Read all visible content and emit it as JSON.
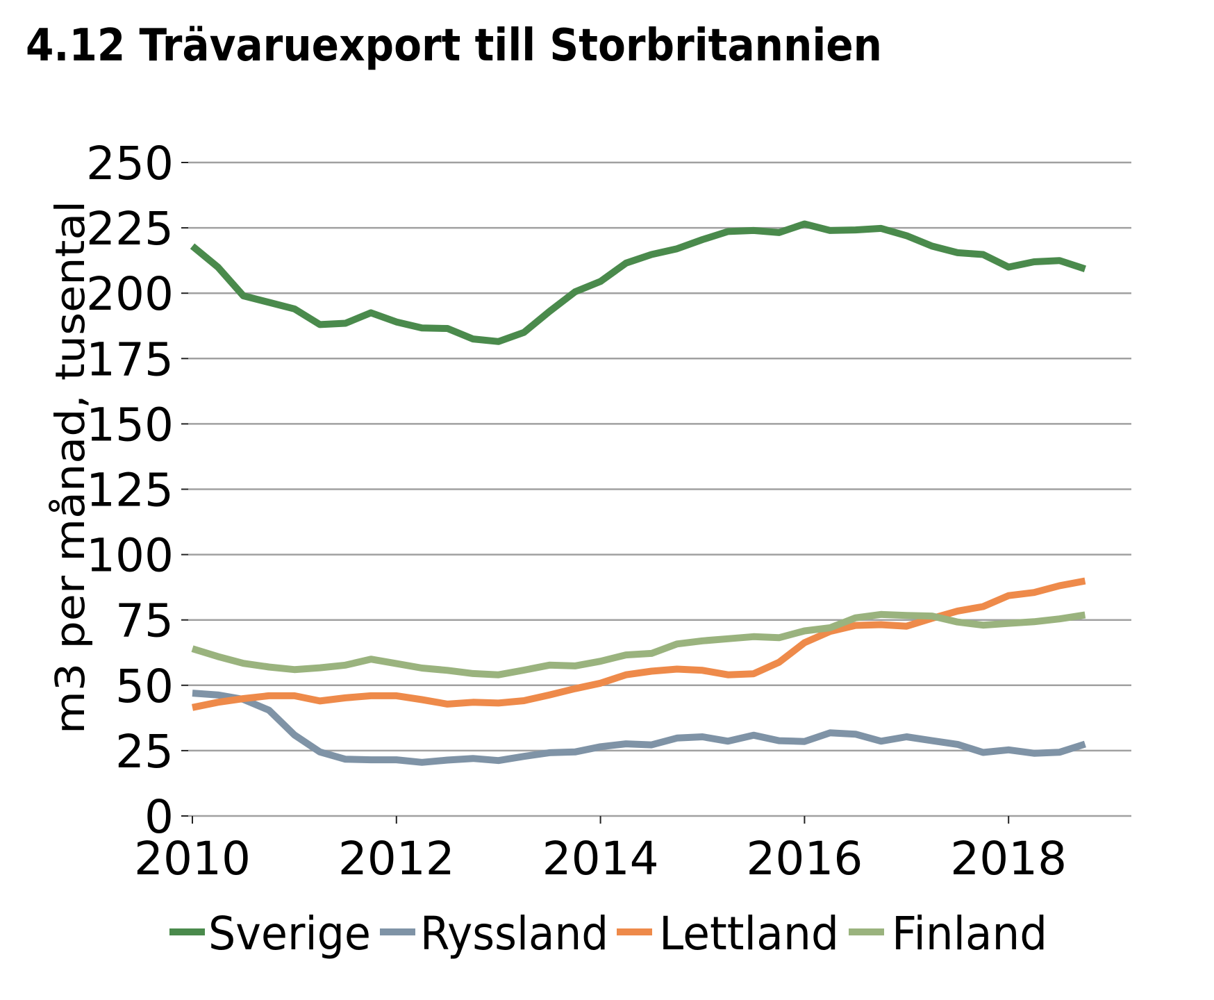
{
  "chart_data": {
    "type": "line",
    "title": "4.12 Trävaruexport till Storbritannien",
    "xlabel": "",
    "ylabel": "m3 per månad, tusental",
    "xlim": [
      2010,
      2019.15
    ],
    "ylim": [
      0,
      250
    ],
    "grid": true,
    "legend_position": "bottom",
    "x_ticks": [
      2010,
      2012,
      2014,
      2016,
      2018
    ],
    "x_tick_labels": [
      "2010",
      "2012",
      "2014",
      "2016",
      "2018"
    ],
    "y_ticks": [
      0,
      25,
      50,
      75,
      100,
      125,
      150,
      175,
      200,
      225,
      250
    ],
    "y_tick_labels": [
      "0",
      "25",
      "50",
      "75",
      "100",
      "125",
      "150",
      "175",
      "200",
      "225",
      "250"
    ],
    "x": [
      2010.0,
      2010.25,
      2010.5,
      2010.75,
      2011.0,
      2011.25,
      2011.5,
      2011.75,
      2012.0,
      2012.25,
      2012.5,
      2012.75,
      2013.0,
      2013.25,
      2013.5,
      2013.75,
      2014.0,
      2014.25,
      2014.5,
      2014.75,
      2015.0,
      2015.25,
      2015.5,
      2015.75,
      2016.0,
      2016.25,
      2016.5,
      2016.75,
      2017.0,
      2017.25,
      2017.5,
      2017.75,
      2018.0,
      2018.25,
      2018.5,
      2018.75
    ],
    "series": [
      {
        "name": "Sverige",
        "color": "#4a8a4c",
        "values": [
          218,
          210,
          199,
          196.5,
          194,
          188,
          188.5,
          192.5,
          189,
          186.7,
          186.5,
          182.5,
          181.5,
          185,
          193,
          200.5,
          204.5,
          211.5,
          214.8,
          217,
          220.5,
          223.6,
          224,
          223.2,
          226.5,
          224,
          224.2,
          224.8,
          222,
          218,
          215.5,
          214.8,
          210,
          212,
          212.5,
          209.3
        ]
      },
      {
        "name": "Ryssland",
        "color": "#7f93a6",
        "values": [
          47,
          46.3,
          44.6,
          40.5,
          31,
          24.5,
          21.7,
          21.5,
          21.5,
          20.5,
          21.4,
          22,
          21.2,
          22.8,
          24.2,
          24.5,
          26.5,
          27.6,
          27.2,
          29.8,
          30.3,
          28.6,
          30.9,
          28.8,
          28.5,
          31.8,
          31.3,
          28.6,
          30.3,
          28.8,
          27.4,
          24.3,
          25.3,
          24,
          24.4,
          27.5
        ]
      },
      {
        "name": "Lettland",
        "color": "#ee8a4a",
        "values": [
          41.5,
          43.5,
          44.9,
          46,
          46,
          44,
          45.2,
          46,
          46,
          44.5,
          42.8,
          43.5,
          43.2,
          44.1,
          46.3,
          48.7,
          50.8,
          54,
          55.4,
          56.2,
          55.7,
          54,
          54.4,
          58.8,
          66.3,
          70.6,
          72.9,
          73.2,
          72.6,
          75.6,
          78.4,
          80.1,
          84.3,
          85.5,
          88.1,
          89.9
        ]
      },
      {
        "name": "Finland",
        "color": "#9ab37e",
        "values": [
          64,
          61,
          58.4,
          57,
          56,
          56.7,
          57.7,
          60,
          58.3,
          56.6,
          55.7,
          54.5,
          54,
          55.8,
          57.7,
          57.4,
          59.2,
          61.6,
          62.2,
          65.8,
          67,
          67.8,
          68.6,
          68.2,
          70.8,
          72,
          75.8,
          77.1,
          76.7,
          76.5,
          74.2,
          73,
          73.7,
          74.3,
          75.4,
          76.9
        ]
      }
    ]
  }
}
